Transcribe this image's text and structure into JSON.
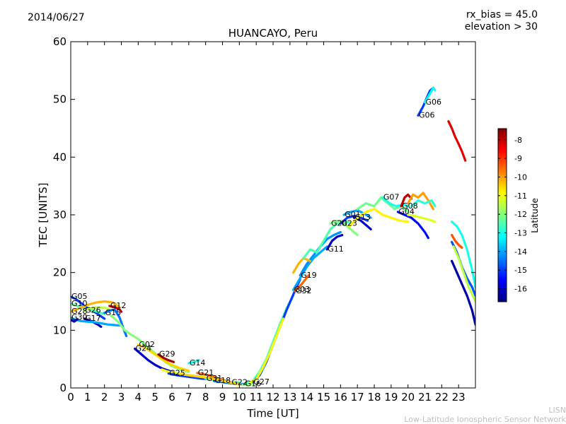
{
  "header": {
    "date": "2014/06/27",
    "rx_bias": "rx_bias = 45.0",
    "elevation": "elevation > 30"
  },
  "footer": {
    "org": "LISN",
    "org_full": "Low-Latitude Ionospheric Sensor Network"
  },
  "chart_data": {
    "type": "line",
    "title": "HUANCAYO, Peru",
    "xlabel": "Time [UT]",
    "ylabel": "TEC [UNITS]",
    "xlim": [
      0,
      24
    ],
    "ylim": [
      0,
      60
    ],
    "x_ticks": [
      0,
      1,
      2,
      3,
      4,
      5,
      6,
      7,
      8,
      9,
      10,
      11,
      12,
      13,
      14,
      15,
      16,
      17,
      18,
      19,
      20,
      21,
      22,
      23
    ],
    "y_ticks": [
      0,
      10,
      20,
      30,
      40,
      50,
      60
    ],
    "grid": false,
    "colorbar": {
      "label": "Latitude",
      "min": -16.7,
      "max": -7.4,
      "ticks": [
        -8,
        -9,
        -10,
        -11,
        -12,
        -13,
        -14,
        -15,
        -16
      ],
      "colormap": "jet"
    },
    "series": [
      {
        "name": "G06",
        "lat": -15.0,
        "x": [
          20.6,
          20.9,
          21.1,
          21.3,
          21.5
        ],
        "y": [
          47.2,
          48.8,
          50.2,
          51.5,
          52.0
        ]
      },
      {
        "name": "G06",
        "lat": -13.2,
        "x": [
          21.0,
          21.3,
          21.5,
          21.6
        ],
        "y": [
          49.5,
          51.0,
          52.0,
          51.6
        ]
      },
      {
        "name": "",
        "lat": -8.3,
        "x": [
          22.4,
          22.6,
          22.8,
          23.0,
          23.2,
          23.4
        ],
        "y": [
          46.2,
          45.0,
          43.5,
          42.3,
          41.0,
          39.4
        ]
      },
      {
        "name": "G05",
        "lat": -15.0,
        "x": [
          0.0,
          0.3,
          0.7,
          1.0,
          1.4,
          1.7,
          2.0
        ],
        "y": [
          15.8,
          15.4,
          14.5,
          13.8,
          13.2,
          12.6,
          12.0
        ]
      },
      {
        "name": "G10",
        "lat": -12.5,
        "x": [
          0.0,
          0.4,
          0.8,
          1.2,
          1.6,
          2.0
        ],
        "y": [
          14.6,
          14.2,
          13.8,
          13.5,
          13.2,
          12.8
        ]
      },
      {
        "name": "G28",
        "lat": -10.2,
        "x": [
          0.0,
          0.5,
          1.0,
          1.5,
          2.0,
          2.5,
          2.9
        ],
        "y": [
          13.2,
          13.8,
          14.4,
          14.8,
          15.0,
          14.8,
          14.0
        ]
      },
      {
        "name": "G26",
        "lat": -11.5,
        "x": [
          0.8,
          1.2,
          1.6,
          2.0,
          2.3
        ],
        "y": [
          13.4,
          13.8,
          14.0,
          13.9,
          13.6
        ]
      },
      {
        "name": "G12",
        "lat": -8.0,
        "x": [
          2.3,
          2.6,
          2.9,
          3.0
        ],
        "y": [
          14.2,
          14.0,
          13.6,
          13.2
        ]
      },
      {
        "name": "G15",
        "lat": -14.5,
        "x": [
          2.0,
          2.3,
          2.6,
          2.9,
          3.1,
          3.3
        ],
        "y": [
          13.0,
          13.4,
          13.6,
          12.2,
          10.5,
          9.0
        ]
      },
      {
        "name": "G17",
        "lat": -16.3,
        "x": [
          0.8,
          1.2,
          1.6,
          1.8
        ],
        "y": [
          12.0,
          11.6,
          11.0,
          10.6
        ]
      },
      {
        "name": "G30",
        "lat": -14.0,
        "x": [
          0.0,
          0.3,
          0.6,
          1.0,
          1.4,
          1.8,
          2.2,
          2.6,
          3.0
        ],
        "y": [
          12.2,
          11.8,
          11.6,
          11.5,
          11.4,
          11.2,
          11.0,
          10.9,
          10.8
        ]
      },
      {
        "name": "",
        "lat": -16.2,
        "x": [
          0.0,
          0.2,
          0.4
        ],
        "y": [
          11.8,
          11.5,
          11.9
        ]
      },
      {
        "name": "",
        "lat": -12.0,
        "x": [
          2.4,
          2.8,
          3.2,
          3.6,
          4.0,
          4.4,
          4.8,
          5.2,
          5.6,
          6.0,
          6.5,
          7.0
        ],
        "y": [
          12.5,
          11.5,
          10.0,
          9.2,
          8.5,
          7.5,
          6.5,
          5.5,
          4.5,
          3.8,
          3.2,
          2.8
        ]
      },
      {
        "name": "G24",
        "lat": -16.0,
        "x": [
          3.8,
          4.2,
          4.6,
          5.0,
          5.4,
          5.8,
          6.2,
          6.6,
          7.0
        ],
        "y": [
          6.8,
          5.8,
          4.8,
          4.0,
          3.4,
          3.0,
          2.6,
          2.3,
          2.0
        ]
      },
      {
        "name": "G02",
        "lat": -10.5,
        "x": [
          4.0,
          4.5,
          5.0,
          5.5,
          6.0,
          6.5,
          7.0
        ],
        "y": [
          7.5,
          6.8,
          5.8,
          4.8,
          4.0,
          3.4,
          3.0
        ]
      },
      {
        "name": "G29",
        "lat": -7.8,
        "x": [
          5.2,
          5.5,
          5.8,
          6.1
        ],
        "y": [
          5.8,
          5.2,
          4.8,
          4.5
        ]
      },
      {
        "name": "",
        "lat": -11.0,
        "x": [
          5.4,
          5.8,
          6.2,
          6.6,
          7.0,
          7.5,
          8.0,
          8.5,
          9.0
        ],
        "y": [
          3.2,
          2.8,
          2.6,
          2.4,
          2.2,
          2.0,
          1.8,
          1.6,
          1.4
        ]
      },
      {
        "name": "G14",
        "lat": -13.0,
        "x": [
          7.0,
          7.3,
          7.6
        ],
        "y": [
          4.3,
          4.5,
          4.8
        ]
      },
      {
        "name": "G25",
        "lat": -15.0,
        "x": [
          5.8,
          6.3,
          6.8,
          7.3,
          7.8,
          8.3
        ],
        "y": [
          2.5,
          2.2,
          2.0,
          1.8,
          1.6,
          1.5
        ]
      },
      {
        "name": "G21",
        "lat": -9.5,
        "x": [
          7.5,
          7.8,
          8.2,
          8.6,
          9.0,
          9.5
        ],
        "y": [
          2.6,
          2.4,
          2.2,
          1.8,
          1.4,
          1.0
        ]
      },
      {
        "name": "G31",
        "lat": -12.5,
        "x": [
          8.0,
          8.5,
          9.0,
          9.5,
          10.0
        ],
        "y": [
          1.6,
          1.4,
          1.2,
          1.0,
          0.9
        ]
      },
      {
        "name": "G18",
        "lat": -14.5,
        "x": [
          8.5,
          9.0,
          9.5,
          10.0,
          10.5
        ],
        "y": [
          1.2,
          1.0,
          0.8,
          0.7,
          0.7
        ]
      },
      {
        "name": "G22",
        "lat": -11.8,
        "x": [
          9.5,
          10.0,
          10.5,
          10.8
        ],
        "y": [
          0.9,
          0.6,
          0.5,
          0.7
        ]
      },
      {
        "name": "",
        "lat": -10.5,
        "x": [
          6.5,
          7.0,
          7.5,
          8.0,
          8.5,
          9.0,
          9.5,
          10.0
        ],
        "y": [
          2.4,
          2.2,
          2.0,
          1.8,
          1.6,
          1.2,
          0.9,
          0.6
        ]
      },
      {
        "name": "G16",
        "lat": -12.5,
        "x": [
          10.3,
          10.8,
          11.2,
          11.6,
          12.0,
          12.4,
          12.8,
          13.2
        ],
        "y": [
          0.7,
          1.2,
          2.8,
          5.0,
          8.0,
          11.0,
          13.8,
          16.0
        ]
      },
      {
        "name": "G27",
        "lat": -15.0,
        "x": [
          10.8,
          11.2,
          11.6,
          12.0,
          12.4,
          12.8,
          13.2,
          13.6
        ],
        "y": [
          1.0,
          2.2,
          4.5,
          7.5,
          10.5,
          13.5,
          16.2,
          18.8
        ]
      },
      {
        "name": "",
        "lat": -11.0,
        "x": [
          10.6,
          11.0,
          11.4,
          11.8,
          12.2,
          12.6
        ],
        "y": [
          0.9,
          1.5,
          3.5,
          6.0,
          9.0,
          12.0
        ]
      },
      {
        "name": "G03",
        "lat": -14.0,
        "x": [
          13.2,
          13.6,
          14.0,
          14.4,
          14.8,
          15.2
        ],
        "y": [
          17.0,
          19.0,
          21.0,
          22.5,
          23.5,
          24.5
        ]
      },
      {
        "name": "G32",
        "lat": -9.5,
        "x": [
          13.3,
          13.7,
          14.1
        ],
        "y": [
          16.8,
          18.0,
          19.5
        ]
      },
      {
        "name": "G19",
        "lat": -14.2,
        "x": [
          13.6,
          14.0,
          14.4,
          14.8,
          15.2,
          15.6,
          16.0
        ],
        "y": [
          19.5,
          21.5,
          23.0,
          24.5,
          25.8,
          26.5,
          27.0
        ]
      },
      {
        "name": "",
        "lat": -10.2,
        "x": [
          13.2,
          13.5,
          13.8,
          14.2
        ],
        "y": [
          20.0,
          21.5,
          22.5,
          22.0
        ]
      },
      {
        "name": "",
        "lat": -12.5,
        "x": [
          13.8,
          14.2,
          14.6,
          15.0,
          15.4,
          15.8,
          16.2,
          16.6
        ],
        "y": [
          22.5,
          24.0,
          23.5,
          25.5,
          27.5,
          28.5,
          29.0,
          28.5
        ]
      },
      {
        "name": "G11",
        "lat": -16.0,
        "x": [
          15.2,
          15.5,
          15.8,
          16.1
        ],
        "y": [
          24.0,
          25.5,
          26.2,
          26.5
        ]
      },
      {
        "name": "G20",
        "lat": -12.0,
        "x": [
          15.4,
          15.8,
          16.2,
          16.6,
          17.0
        ],
        "y": [
          28.5,
          29.0,
          28.5,
          27.5,
          26.5
        ]
      },
      {
        "name": "G23",
        "lat": -15.0,
        "x": [
          16.0,
          16.4,
          16.8,
          17.2,
          17.6
        ],
        "y": [
          28.5,
          29.5,
          29.8,
          29.5,
          29.0
        ]
      },
      {
        "name": "G01",
        "lat": -14.0,
        "x": [
          16.2,
          16.6,
          17.0,
          17.4,
          17.8
        ],
        "y": [
          30.0,
          30.5,
          30.8,
          30.2,
          29.5
        ]
      },
      {
        "name": "G13",
        "lat": -16.0,
        "x": [
          16.8,
          17.2,
          17.6,
          17.8
        ],
        "y": [
          29.5,
          29.0,
          28.0,
          27.5
        ]
      },
      {
        "name": "",
        "lat": -10.8,
        "x": [
          16.5,
          17.0,
          17.5,
          18.0,
          18.5,
          19.0,
          19.5,
          20.0
        ],
        "y": [
          28.0,
          29.5,
          30.5,
          31.0,
          30.0,
          29.5,
          29.0,
          28.8
        ]
      },
      {
        "name": "",
        "lat": -12.2,
        "x": [
          17.0,
          17.5,
          18.0,
          18.4,
          18.8,
          19.2,
          19.6,
          20.0
        ],
        "y": [
          31.0,
          32.0,
          31.5,
          33.0,
          32.0,
          31.0,
          31.5,
          30.5
        ]
      },
      {
        "name": "G07",
        "lat": -13.0,
        "x": [
          18.5,
          18.9,
          19.3,
          19.7,
          20.0
        ],
        "y": [
          33.0,
          32.0,
          31.5,
          31.8,
          31.5
        ]
      },
      {
        "name": "G08",
        "lat": -8.0,
        "x": [
          19.6,
          19.8,
          20.0,
          20.2
        ],
        "y": [
          31.5,
          33.0,
          33.5,
          32.8
        ]
      },
      {
        "name": "",
        "lat": -10.0,
        "x": [
          20.0,
          20.3,
          20.6,
          20.9,
          21.2,
          21.5
        ],
        "y": [
          32.0,
          33.5,
          33.0,
          33.8,
          32.5,
          31.0
        ]
      },
      {
        "name": "G04",
        "lat": -15.5,
        "x": [
          19.4,
          19.8,
          20.2,
          20.6,
          21.0,
          21.2
        ],
        "y": [
          30.5,
          30.0,
          29.5,
          28.5,
          27.0,
          26.0
        ]
      },
      {
        "name": "",
        "lat": -12.8,
        "x": [
          20.2,
          20.6,
          21.0,
          21.4,
          21.6
        ],
        "y": [
          31.5,
          32.5,
          32.0,
          32.5,
          31.5
        ]
      },
      {
        "name": "",
        "lat": -11.2,
        "x": [
          20.0,
          20.4,
          20.8,
          21.2,
          21.6
        ],
        "y": [
          30.0,
          29.8,
          29.5,
          29.2,
          28.8
        ]
      },
      {
        "name": "",
        "lat": -13.0,
        "x": [
          22.6,
          22.9,
          23.2,
          23.5,
          23.8,
          24.0
        ],
        "y": [
          28.8,
          28.0,
          26.5,
          24.0,
          20.5,
          17.5
        ]
      },
      {
        "name": "",
        "lat": -9.3,
        "x": [
          22.6,
          22.8,
          23.0,
          23.2
        ],
        "y": [
          26.5,
          25.5,
          24.8,
          24.3
        ]
      },
      {
        "name": "",
        "lat": -14.8,
        "x": [
          22.6,
          22.9,
          23.2,
          23.5,
          23.8,
          24.0
        ],
        "y": [
          25.3,
          23.5,
          21.0,
          19.0,
          17.5,
          16.0
        ]
      },
      {
        "name": "",
        "lat": -16.3,
        "x": [
          22.6,
          22.9,
          23.2,
          23.5,
          23.8,
          24.0
        ],
        "y": [
          22.0,
          20.0,
          18.0,
          16.0,
          13.5,
          11.0
        ]
      },
      {
        "name": "",
        "lat": -11.5,
        "x": [
          22.7,
          23.0,
          23.3,
          23.6,
          24.0
        ],
        "y": [
          24.5,
          22.5,
          20.0,
          17.5,
          15.0
        ]
      }
    ]
  }
}
